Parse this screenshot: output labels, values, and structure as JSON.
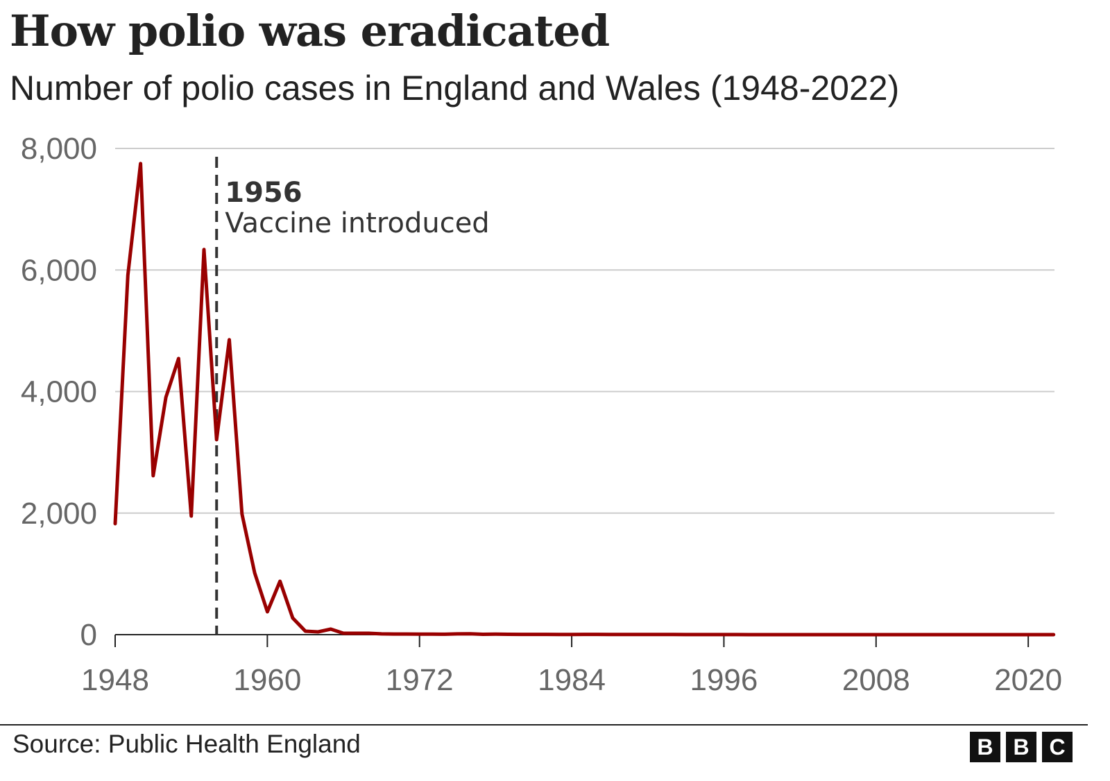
{
  "chart_data": {
    "type": "line",
    "title": "How polio was eradicated",
    "subtitle": "Number of polio cases in England and Wales (1948-2022)",
    "xlabel": "",
    "ylabel": "",
    "xlim": [
      1948,
      2022
    ],
    "ylim": [
      0,
      8000
    ],
    "grid": true,
    "x_ticks": [
      "1948",
      "1960",
      "1972",
      "1984",
      "1996",
      "2008",
      "2020"
    ],
    "y_ticks": [
      "0",
      "2,000",
      "4,000",
      "6,000",
      "8,000"
    ],
    "series": [
      {
        "color": "#990000",
        "x_start": 1948,
        "values": [
          1826,
          5913,
          7751,
          2614,
          3904,
          4543,
          1952,
          6336,
          3208,
          4852,
          1986,
          1016,
          377,
          879,
          274,
          57,
          46,
          91,
          23,
          23,
          23,
          12,
          10,
          10,
          8,
          8,
          7,
          12,
          14,
          6,
          8,
          6,
          5,
          4,
          4,
          3,
          2,
          5,
          4,
          2,
          2,
          2,
          3,
          3,
          2,
          1,
          1,
          1,
          1,
          1,
          0,
          0,
          0,
          0,
          0,
          0,
          0,
          0,
          0,
          0,
          0,
          0,
          0,
          0,
          0,
          0,
          0,
          0,
          0,
          0,
          0,
          0,
          0,
          0,
          0
        ]
      }
    ],
    "annotations": [
      {
        "x": 1956,
        "label_bold": "1956",
        "label": "Vaccine introduced"
      }
    ]
  },
  "footer": {
    "source": "Source: Public Health England",
    "logo": [
      "B",
      "B",
      "C"
    ]
  }
}
